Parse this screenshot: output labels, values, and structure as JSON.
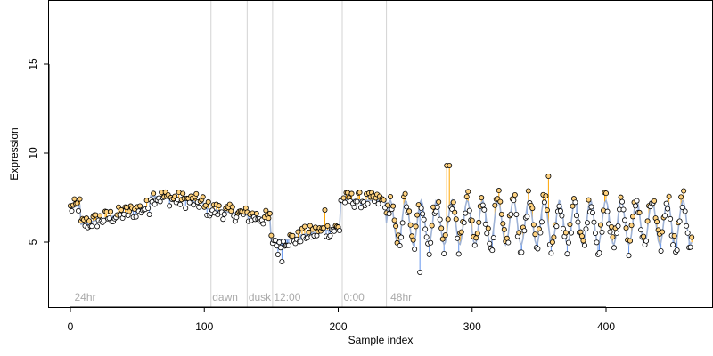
{
  "chart_data": {
    "type": "scatter",
    "title": "",
    "xlabel": "Sample index",
    "ylabel": "Expression",
    "xlim": [
      -16,
      480
    ],
    "ylim": [
      1.5,
      19.0
    ],
    "xticks": [
      0,
      100,
      200,
      300,
      400
    ],
    "yticks": [
      5,
      10,
      15
    ],
    "grid": false,
    "colors": {
      "up": "#ffa500",
      "down": "#6495ed",
      "fitted": "#9fb3d6",
      "point_fill": "#ffd27f",
      "point_edge": "#000000",
      "vline": "#d3d3d3",
      "annotation": "#a9a9a9"
    },
    "annotations": [
      {
        "x": 3,
        "label": "24hr"
      },
      {
        "x": 106,
        "label": "dawn"
      },
      {
        "x": 133,
        "label": "dusk"
      },
      {
        "x": 152,
        "label": "12:00"
      },
      {
        "x": 204,
        "label": "0:00"
      },
      {
        "x": 239,
        "label": "48hr"
      }
    ],
    "vlines": [
      105,
      132,
      151,
      203,
      236
    ],
    "segments": [
      {
        "x0": 0,
        "x1": 8,
        "start": 6.9,
        "end": 7.1
      },
      {
        "x0": 8,
        "x1": 60,
        "start": 6.0,
        "end": 7.0
      },
      {
        "x0": 60,
        "x1": 100,
        "start": 7.6,
        "end": 7.2
      },
      {
        "x0": 100,
        "x1": 150,
        "start": 6.9,
        "end": 6.3
      },
      {
        "x0": 150,
        "x1": 172,
        "start": 5.1,
        "end": 5.2
      },
      {
        "x0": 172,
        "x1": 202,
        "start": 5.4,
        "end": 5.8
      },
      {
        "x0": 202,
        "x1": 236,
        "start": 7.4,
        "end": 7.3
      }
    ],
    "oscillation": {
      "x_start": 236,
      "x_end": 465,
      "period": 11.5,
      "mean": 6.1,
      "amplitude": 1.25
    },
    "spikes": [
      {
        "x": 261,
        "y": 3.3
      },
      {
        "x": 281,
        "y": 9.3
      },
      {
        "x": 283,
        "y": 9.3
      },
      {
        "x": 357,
        "y": 8.7
      },
      {
        "x": 155,
        "y": 4.3
      },
      {
        "x": 158,
        "y": 3.9
      },
      {
        "x": 190,
        "y": 6.8
      }
    ],
    "n_samples": 465
  }
}
